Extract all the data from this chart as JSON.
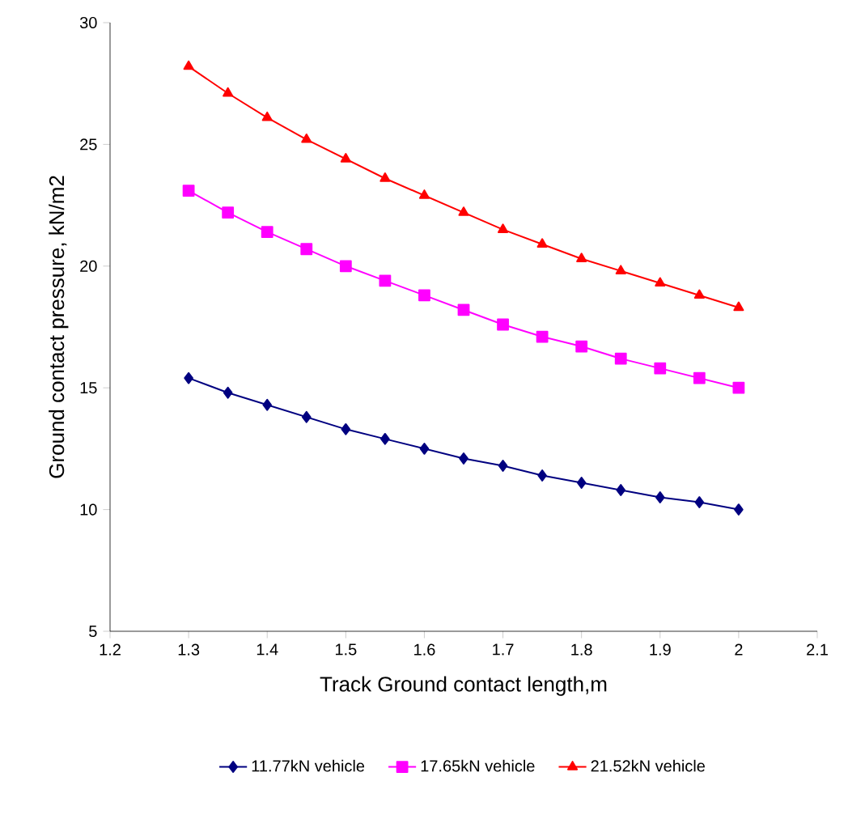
{
  "chart_data": {
    "type": "line",
    "xlabel": "Track Ground contact length,m",
    "ylabel": "Ground contact pressure, kN/m2",
    "x": [
      1.3,
      1.35,
      1.4,
      1.45,
      1.5,
      1.55,
      1.6,
      1.65,
      1.7,
      1.75,
      1.8,
      1.85,
      1.9,
      1.95,
      2.0
    ],
    "series": [
      {
        "name": "11.77kN vehicle",
        "color": "#000080",
        "marker": "diamond",
        "values": [
          15.4,
          14.8,
          14.3,
          13.8,
          13.3,
          12.9,
          12.5,
          12.1,
          11.8,
          11.4,
          11.1,
          10.8,
          10.5,
          10.3,
          10.0
        ]
      },
      {
        "name": "17.65kN vehicle",
        "color": "#ff00ff",
        "marker": "square",
        "values": [
          23.1,
          22.2,
          21.4,
          20.7,
          20.0,
          19.4,
          18.8,
          18.2,
          17.6,
          17.1,
          16.7,
          16.2,
          15.8,
          15.4,
          15.0
        ]
      },
      {
        "name": "21.52kN vehicle",
        "color": "#ff0000",
        "marker": "triangle",
        "values": [
          28.2,
          27.1,
          26.1,
          25.2,
          24.4,
          23.6,
          22.9,
          22.2,
          21.5,
          20.9,
          20.3,
          19.8,
          19.3,
          18.8,
          18.3
        ]
      }
    ],
    "xlim": [
      1.2,
      2.1
    ],
    "xticks": [
      1.2,
      1.3,
      1.4,
      1.5,
      1.6,
      1.7,
      1.8,
      1.9,
      2,
      2.1
    ],
    "ylim": [
      5,
      30
    ],
    "yticks": [
      5,
      10,
      15,
      20,
      25,
      30
    ],
    "grid": false,
    "legend": "bottom",
    "line_style": "solid"
  }
}
